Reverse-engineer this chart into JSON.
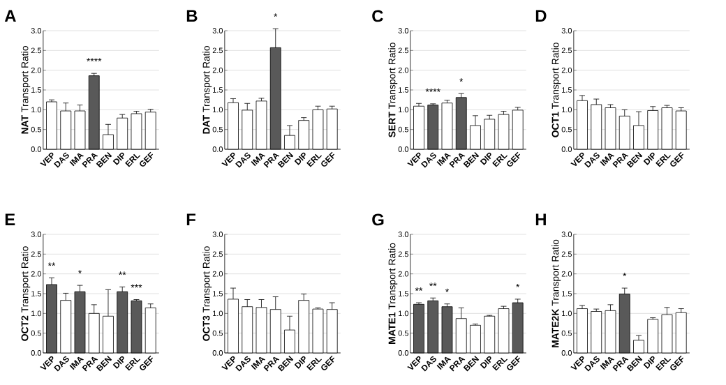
{
  "chart_data": [
    {
      "type": "bar",
      "title": "A",
      "ylabel": "**NAT** Transport Ratio",
      "categories": [
        "VEP",
        "DAS",
        "IMA",
        "PRA",
        "BEN",
        "DIP",
        "ERL",
        "GEF"
      ],
      "values": [
        1.2,
        0.97,
        0.97,
        1.86,
        0.37,
        0.79,
        0.9,
        0.94
      ],
      "errors": [
        [
          1.2,
          1.25
        ],
        [
          0.97,
          1.17
        ],
        [
          0.97,
          1.12
        ],
        [
          1.86,
          1.92
        ],
        [
          0.37,
          0.63
        ],
        [
          0.79,
          0.88
        ],
        [
          0.9,
          0.96
        ],
        [
          0.94,
          1.01
        ]
      ],
      "colors": [
        "#ffffff",
        "#ffffff",
        "#ffffff",
        "#595959",
        "#ffffff",
        "#ffffff",
        "#ffffff",
        "#ffffff"
      ],
      "ylim": [
        0,
        3
      ],
      "yticks": [
        {
          "value": 0,
          "label": "0.0"
        },
        {
          "value": 0.5,
          "label": "0.5"
        },
        {
          "value": 1,
          "label": "1.0"
        },
        {
          "value": 1.5,
          "label": "1.5"
        },
        {
          "value": 2,
          "label": "2.0"
        },
        {
          "value": 2.5,
          "label": "2.5"
        },
        {
          "value": 3,
          "label": "3.0"
        }
      ],
      "grid": "y",
      "annotations": [
        "****"
      ]
    },
    {
      "type": "bar",
      "title": "B",
      "ylabel": "**DAT** Transport Ratio",
      "categories": [
        "VEP",
        "DAS",
        "IMA",
        "PRA",
        "BEN",
        "DIP",
        "ERL",
        "GEF"
      ],
      "values": [
        1.18,
        0.99,
        1.22,
        2.57,
        0.35,
        0.73,
        1.0,
        1.02
      ],
      "errors": [
        [
          1.18,
          1.28
        ],
        [
          0.99,
          1.16
        ],
        [
          1.22,
          1.29
        ],
        [
          2.57,
          3.05
        ],
        [
          0.35,
          0.6
        ],
        [
          0.73,
          0.8
        ],
        [
          1.0,
          1.09
        ],
        [
          1.02,
          1.09
        ]
      ],
      "colors": [
        "#ffffff",
        "#ffffff",
        "#ffffff",
        "#595959",
        "#ffffff",
        "#ffffff",
        "#ffffff",
        "#ffffff"
      ],
      "ylim": [
        0,
        3
      ],
      "yticks": [
        {
          "value": 0,
          "label": "0.0"
        },
        {
          "value": 0.5,
          "label": "0.5"
        },
        {
          "value": 1,
          "label": "1.0"
        },
        {
          "value": 1.5,
          "label": "1.5"
        },
        {
          "value": 2,
          "label": "2.0"
        },
        {
          "value": 2.5,
          "label": "2.5"
        },
        {
          "value": 3,
          "label": "3.0"
        }
      ],
      "grid": "y",
      "annotations": [
        "*"
      ]
    },
    {
      "type": "bar",
      "title": "C",
      "ylabel": "**SERT** Transport Ratio",
      "categories": [
        "VEP",
        "DAS",
        "IMA",
        "PRA",
        "BEN",
        "DIP",
        "ERL",
        "GEF"
      ],
      "values": [
        1.09,
        1.12,
        1.17,
        1.31,
        0.6,
        0.76,
        0.88,
        0.99
      ],
      "errors": [
        [
          1.09,
          1.16
        ],
        [
          1.12,
          1.15
        ],
        [
          1.17,
          1.24
        ],
        [
          1.31,
          1.41
        ],
        [
          0.6,
          0.85
        ],
        [
          0.76,
          0.86
        ],
        [
          0.88,
          0.96
        ],
        [
          0.99,
          1.06
        ]
      ],
      "colors": [
        "#ffffff",
        "#595959",
        "#ffffff",
        "#595959",
        "#ffffff",
        "#ffffff",
        "#ffffff",
        "#ffffff"
      ],
      "ylim": [
        0,
        3
      ],
      "yticks": [
        {
          "value": 0,
          "label": "0.0"
        },
        {
          "value": 0.5,
          "label": "0.5"
        },
        {
          "value": 1,
          "label": "1.0"
        },
        {
          "value": 1.5,
          "label": "1.5"
        },
        {
          "value": 2,
          "label": "2.0"
        },
        {
          "value": 2.5,
          "label": "2.5"
        },
        {
          "value": 3,
          "label": "3.0"
        }
      ],
      "grid": "y",
      "annotations": [
        "****",
        "*"
      ]
    },
    {
      "type": "bar",
      "title": "D",
      "ylabel": "**OCT1** Transport Ratio",
      "categories": [
        "VEP",
        "DAS",
        "IMA",
        "PRA",
        "BEN",
        "DIP",
        "ERL",
        "GEF"
      ],
      "values": [
        1.23,
        1.13,
        1.05,
        0.84,
        0.6,
        0.98,
        1.05,
        0.97
      ],
      "errors": [
        [
          1.23,
          1.36
        ],
        [
          1.13,
          1.27
        ],
        [
          1.05,
          1.13
        ],
        [
          0.84,
          1.0
        ],
        [
          0.6,
          0.95
        ],
        [
          0.98,
          1.08
        ],
        [
          1.05,
          1.11
        ],
        [
          0.97,
          1.05
        ]
      ],
      "colors": [
        "#ffffff",
        "#ffffff",
        "#ffffff",
        "#ffffff",
        "#ffffff",
        "#ffffff",
        "#ffffff",
        "#ffffff"
      ],
      "ylim": [
        0,
        3
      ],
      "yticks": [
        {
          "value": 0,
          "label": "0.0"
        },
        {
          "value": 0.5,
          "label": "0.5"
        },
        {
          "value": 1,
          "label": "1.0"
        },
        {
          "value": 1.5,
          "label": "1.5"
        },
        {
          "value": 2,
          "label": "2.0"
        },
        {
          "value": 2.5,
          "label": "2.5"
        },
        {
          "value": 3,
          "label": "3.0"
        }
      ],
      "grid": "y"
    },
    {
      "type": "bar",
      "title": "E",
      "ylabel": "**OCT2** Transport Ratio",
      "categories": [
        "VEP",
        "DAS",
        "IMA",
        "PRA",
        "BEN",
        "DIP",
        "ERL",
        "GEF"
      ],
      "values": [
        1.73,
        1.33,
        1.55,
        1.0,
        0.93,
        1.55,
        1.32,
        1.14
      ],
      "errors": [
        [
          1.73,
          1.9
        ],
        [
          1.33,
          1.51
        ],
        [
          1.55,
          1.71
        ],
        [
          1.0,
          1.22
        ],
        [
          0.93,
          1.6
        ],
        [
          1.55,
          1.67
        ],
        [
          1.32,
          1.35
        ],
        [
          1.14,
          1.24
        ]
      ],
      "colors": [
        "#595959",
        "#ffffff",
        "#595959",
        "#ffffff",
        "#ffffff",
        "#595959",
        "#595959",
        "#ffffff"
      ],
      "ylim": [
        0,
        3
      ],
      "yticks": [
        {
          "value": 0,
          "label": "0.0"
        },
        {
          "value": 0.5,
          "label": "0.5"
        },
        {
          "value": 1,
          "label": "1.0"
        },
        {
          "value": 1.5,
          "label": "1.5"
        },
        {
          "value": 2,
          "label": "2.0"
        },
        {
          "value": 2.5,
          "label": "2.5"
        },
        {
          "value": 3,
          "label": "3.0"
        }
      ],
      "grid": "y",
      "annotations": [
        "**",
        "*",
        "**",
        "***"
      ]
    },
    {
      "type": "bar",
      "title": "F",
      "ylabel": "**OCT3** Transport Ratio",
      "categories": [
        "VEP",
        "DAS",
        "IMA",
        "PRA",
        "BEN",
        "DIP",
        "ERL",
        "GEF"
      ],
      "values": [
        1.36,
        1.17,
        1.15,
        1.1,
        0.58,
        1.33,
        1.11,
        1.1
      ],
      "errors": [
        [
          1.36,
          1.64
        ],
        [
          1.17,
          1.35
        ],
        [
          1.15,
          1.35
        ],
        [
          1.1,
          1.42
        ],
        [
          0.58,
          0.93
        ],
        [
          1.33,
          1.49
        ],
        [
          1.11,
          1.14
        ],
        [
          1.1,
          1.27
        ]
      ],
      "colors": [
        "#ffffff",
        "#ffffff",
        "#ffffff",
        "#ffffff",
        "#ffffff",
        "#ffffff",
        "#ffffff",
        "#ffffff"
      ],
      "ylim": [
        0,
        3
      ],
      "yticks": [
        {
          "value": 0,
          "label": "0.0"
        },
        {
          "value": 0.5,
          "label": "0.5"
        },
        {
          "value": 1,
          "label": "1.0"
        },
        {
          "value": 1.5,
          "label": "1.5"
        },
        {
          "value": 2,
          "label": "2.0"
        },
        {
          "value": 2.5,
          "label": "2.5"
        },
        {
          "value": 3,
          "label": "3.0"
        }
      ],
      "grid": "y"
    },
    {
      "type": "bar",
      "title": "G",
      "ylabel": "**MATE1** Transport Ratio",
      "categories": [
        "VEP",
        "DAS",
        "IMA",
        "PRA",
        "BEN",
        "DIP",
        "ERL",
        "GEF"
      ],
      "values": [
        1.23,
        1.32,
        1.17,
        0.87,
        0.7,
        0.93,
        1.12,
        1.27
      ],
      "errors": [
        [
          1.23,
          1.27
        ],
        [
          1.32,
          1.39
        ],
        [
          1.17,
          1.24
        ],
        [
          0.87,
          1.14
        ],
        [
          0.7,
          0.73
        ],
        [
          0.93,
          0.95
        ],
        [
          1.12,
          1.18
        ],
        [
          1.27,
          1.36
        ]
      ],
      "colors": [
        "#595959",
        "#595959",
        "#595959",
        "#ffffff",
        "#ffffff",
        "#ffffff",
        "#ffffff",
        "#595959"
      ],
      "ylim": [
        0,
        3
      ],
      "yticks": [
        {
          "value": 0,
          "label": "0.0"
        },
        {
          "value": 0.5,
          "label": "0.5"
        },
        {
          "value": 1,
          "label": "1.0"
        },
        {
          "value": 1.5,
          "label": "1.5"
        },
        {
          "value": 2,
          "label": "2.0"
        },
        {
          "value": 2.5,
          "label": "2.5"
        },
        {
          "value": 3,
          "label": "3.0"
        }
      ],
      "grid": "y",
      "annotations": [
        "**",
        "**",
        "*",
        "*"
      ]
    },
    {
      "type": "bar",
      "title": "H",
      "ylabel": "**MATE2K** Transport Ratio",
      "categories": [
        "VEP",
        "DAS",
        "IMA",
        "PRA",
        "BEN",
        "DIP",
        "ERL",
        "GEF"
      ],
      "values": [
        1.12,
        1.05,
        1.07,
        1.49,
        0.32,
        0.85,
        0.97,
        1.02
      ],
      "errors": [
        [
          1.12,
          1.2
        ],
        [
          1.05,
          1.11
        ],
        [
          1.07,
          1.22
        ],
        [
          1.49,
          1.64
        ],
        [
          0.32,
          0.44
        ],
        [
          0.85,
          0.89
        ],
        [
          0.97,
          1.15
        ],
        [
          1.02,
          1.12
        ]
      ],
      "colors": [
        "#ffffff",
        "#ffffff",
        "#ffffff",
        "#595959",
        "#ffffff",
        "#ffffff",
        "#ffffff",
        "#ffffff"
      ],
      "ylim": [
        0,
        3
      ],
      "yticks": [
        {
          "value": 0,
          "label": "0.0"
        },
        {
          "value": 0.5,
          "label": "0.5"
        },
        {
          "value": 1,
          "label": "1.0"
        },
        {
          "value": 1.5,
          "label": "1.5"
        },
        {
          "value": 2,
          "label": "2.0"
        },
        {
          "value": 2.5,
          "label": "2.5"
        },
        {
          "value": 3,
          "label": "3.0"
        }
      ],
      "grid": "y",
      "annotations": [
        "*"
      ]
    }
  ]
}
